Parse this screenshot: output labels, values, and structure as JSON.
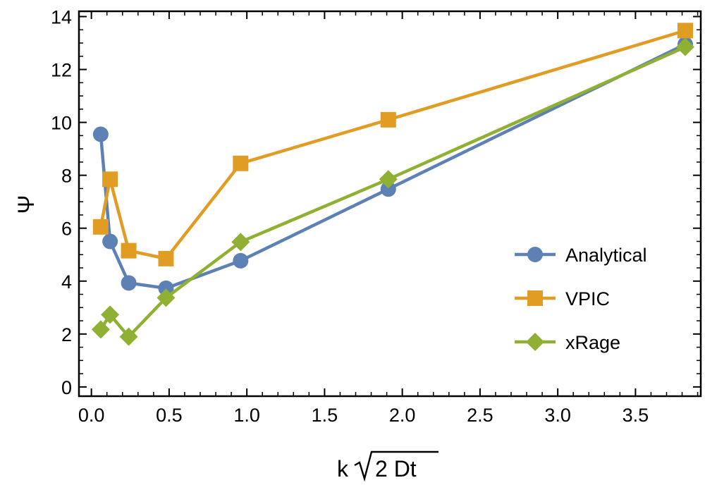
{
  "chart_data": {
    "type": "line",
    "title": "",
    "xlabel": "k √(2 Dt)",
    "xlabel_prefix": "k",
    "xlabel_radicand": "2 Dt",
    "ylabel": "Ψ",
    "xlim": [
      -0.08,
      3.92
    ],
    "ylim": [
      -0.35,
      14.2
    ],
    "xticks": [
      0.0,
      0.5,
      1.0,
      1.5,
      2.0,
      2.5,
      3.0,
      3.5
    ],
    "xtick_labels": [
      "0.0",
      "0.5",
      "1.0",
      "1.5",
      "2.0",
      "2.5",
      "3.0",
      "3.5"
    ],
    "yticks": [
      0,
      2,
      4,
      6,
      8,
      10,
      12,
      14
    ],
    "ytick_labels": [
      "0",
      "2",
      "4",
      "6",
      "8",
      "10",
      "12",
      "14"
    ],
    "x_minor_step": 0.1,
    "y_minor_step": 0.5,
    "grid": false,
    "legend_position": "right",
    "series": [
      {
        "name": "Analytical",
        "color": "#5e81b5",
        "marker": "circle",
        "x": [
          0.06,
          0.12,
          0.24,
          0.48,
          0.96,
          1.91,
          3.82
        ],
        "y": [
          9.55,
          5.5,
          3.93,
          3.73,
          4.77,
          7.48,
          12.95
        ]
      },
      {
        "name": "VPIC",
        "color": "#e19c24",
        "marker": "square",
        "x": [
          0.06,
          0.12,
          0.24,
          0.48,
          0.96,
          1.91,
          3.82
        ],
        "y": [
          6.05,
          7.85,
          5.15,
          4.85,
          8.45,
          10.1,
          13.47
        ]
      },
      {
        "name": "xRage",
        "color": "#8fb032",
        "marker": "diamond",
        "x": [
          0.06,
          0.12,
          0.24,
          0.48,
          0.96,
          1.91,
          3.82
        ],
        "y": [
          2.17,
          2.73,
          1.9,
          3.37,
          5.48,
          7.85,
          12.85
        ]
      }
    ]
  }
}
